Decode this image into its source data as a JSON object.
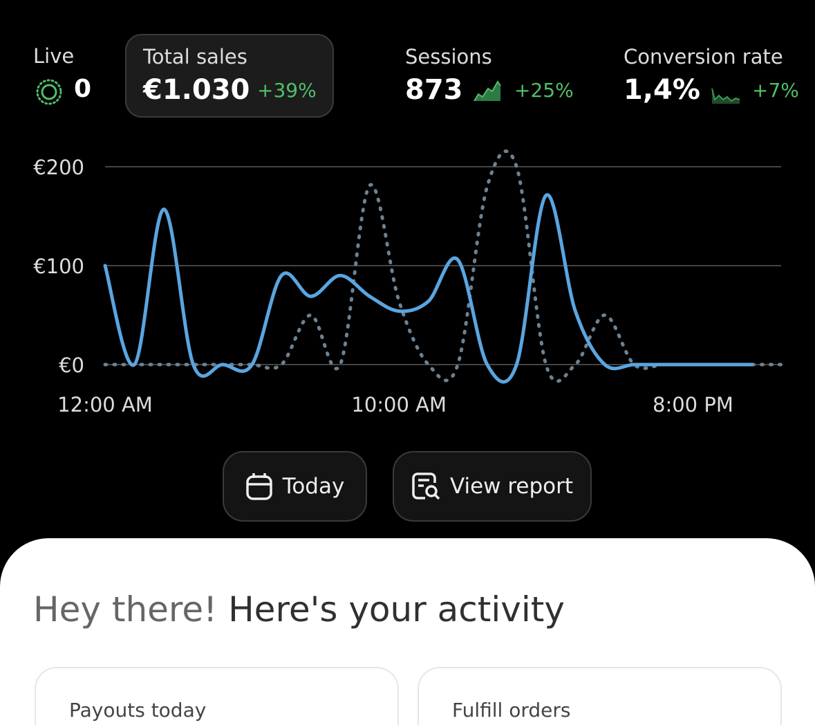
{
  "metrics": [
    {
      "label": "Live",
      "value": "0"
    },
    {
      "label": "Total sales",
      "value": "€1.030",
      "change": "+39%"
    },
    {
      "label": "Sessions",
      "value": "873",
      "change": "+25%"
    },
    {
      "label": "Conversion rate",
      "value": "1,4%",
      "change": "+7%"
    }
  ],
  "chart_data": {
    "type": "line",
    "x": [
      0,
      1,
      2,
      3,
      4,
      5,
      6,
      7,
      8,
      9,
      10,
      11,
      12,
      13,
      14,
      15,
      16,
      17,
      18,
      19,
      20,
      21,
      22,
      23
    ],
    "xlim": [
      0,
      23
    ],
    "xticks": [
      {
        "value": 0,
        "label": "12:00 AM"
      },
      {
        "value": 10,
        "label": "10:00 AM"
      },
      {
        "value": 20,
        "label": "8:00 PM"
      }
    ],
    "ylim": [
      0,
      200
    ],
    "yticks": [
      {
        "value": 0,
        "label": "€0"
      },
      {
        "value": 100,
        "label": "€100"
      },
      {
        "value": 200,
        "label": "€200"
      }
    ],
    "grid": true,
    "series": [
      {
        "color": "#6b8294",
        "dashed": true,
        "values": [
          0,
          0,
          0,
          0,
          0,
          0,
          0,
          50,
          0,
          181,
          64,
          0,
          0,
          180,
          200,
          0,
          0,
          50,
          0,
          0,
          0,
          0,
          0,
          0
        ]
      },
      {
        "color": "#5aa5e0",
        "dashed": false,
        "values": [
          100,
          0,
          157,
          0,
          0,
          0,
          90,
          69,
          90,
          69,
          54,
          64,
          106,
          0,
          0,
          171,
          54,
          0,
          0,
          0,
          0,
          0,
          0,
          null
        ]
      }
    ]
  },
  "buttons": [
    "Today",
    "View report"
  ],
  "greeting": {
    "muted": "Hey there!",
    "text": "Here's your activity"
  },
  "cards": [
    "Payouts today",
    "Fulfill orders"
  ]
}
